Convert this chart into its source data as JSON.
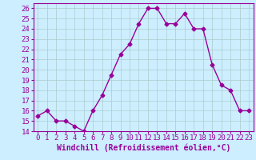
{
  "x": [
    0,
    1,
    2,
    3,
    4,
    5,
    6,
    7,
    8,
    9,
    10,
    11,
    12,
    13,
    14,
    15,
    16,
    17,
    18,
    19,
    20,
    21,
    22,
    23
  ],
  "y": [
    15.5,
    16,
    15,
    15,
    14.5,
    14,
    16,
    17.5,
    19.5,
    21.5,
    22.5,
    24.5,
    26,
    26,
    24.5,
    24.5,
    25.5,
    24,
    24,
    20.5,
    18.5,
    18,
    16,
    16
  ],
  "line_color": "#990099",
  "marker": "D",
  "marker_size": 2.5,
  "bg_color": "#cceeff",
  "grid_color": "#aacccc",
  "xlabel": "Windchill (Refroidissement éolien,°C)",
  "xlim": [
    -0.5,
    23.5
  ],
  "ylim": [
    14,
    26.5
  ],
  "yticks": [
    14,
    15,
    16,
    17,
    18,
    19,
    20,
    21,
    22,
    23,
    24,
    25,
    26
  ],
  "xticks": [
    0,
    1,
    2,
    3,
    4,
    5,
    6,
    7,
    8,
    9,
    10,
    11,
    12,
    13,
    14,
    15,
    16,
    17,
    18,
    19,
    20,
    21,
    22,
    23
  ],
  "xlabel_fontsize": 7,
  "tick_fontsize": 6.5,
  "linewidth": 1.0
}
